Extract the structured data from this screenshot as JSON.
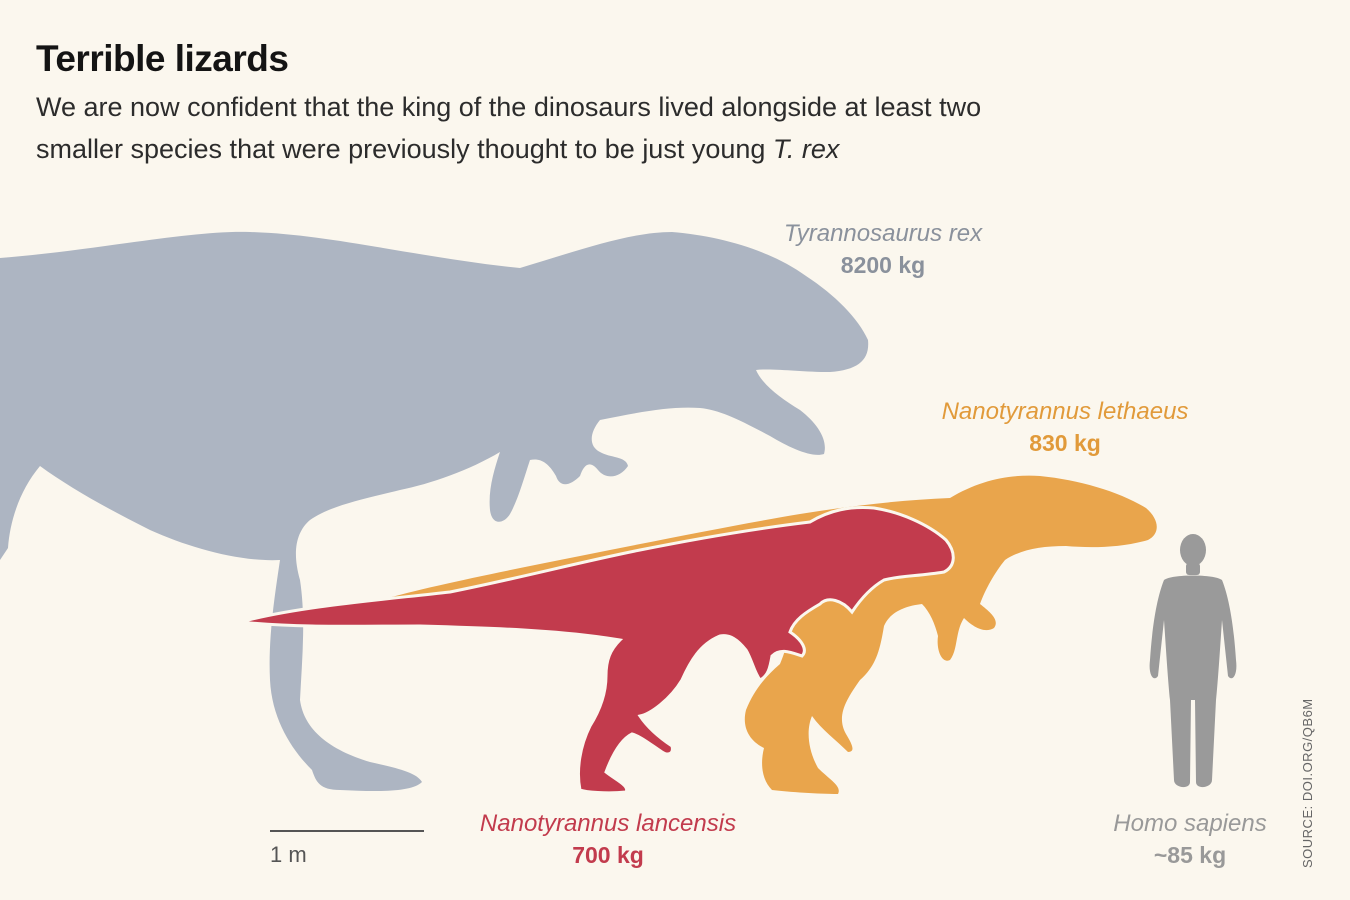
{
  "title": "Terrible lizards",
  "subtitle_start": "We are now confident that the king of the dinosaurs lived alongside at least two smaller species that were previously thought to be just young ",
  "subtitle_em": "T. rex",
  "species": [
    {
      "name": "Tyrannosaurus rex",
      "mass": "8200 kg",
      "color": "#adb5c2"
    },
    {
      "name": "Nanotyrannus lethaeus",
      "mass": "830 kg",
      "color": "#e9a54c"
    },
    {
      "name": "Nanotyrannus lancensis",
      "mass": "700 kg",
      "color": "#c23b4d"
    },
    {
      "name": "Homo sapiens",
      "mass": "~85 kg",
      "color": "#9a9a9a"
    }
  ],
  "scale_bar": "1 m",
  "source": "SOURCE: DOI.ORG/QB6M"
}
